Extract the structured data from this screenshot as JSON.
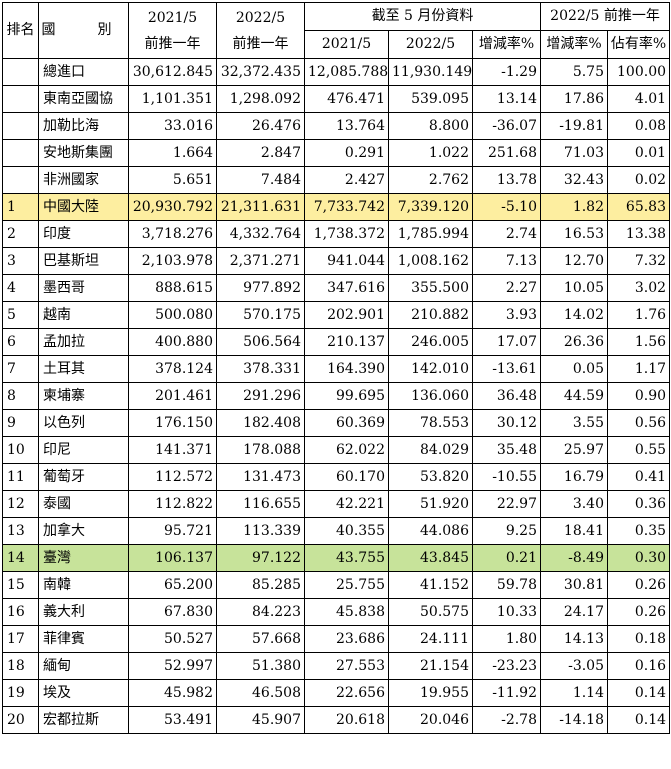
{
  "header": {
    "rank": "排名",
    "country": "國　別",
    "col1_line1": "2021/5",
    "col1_line2": "前推一年",
    "col2_line1": "2022/5",
    "col2_line2": "前推一年",
    "group_may": "截至 5 月份資料",
    "may_2021": "2021/5",
    "may_2022": "2022/5",
    "may_change": "增減率%",
    "group_trailing": "2022/5 前推一年",
    "trailing_change": "增減率%",
    "trailing_share": "佔有率%"
  },
  "highlight_colors": {
    "china": "#fdeea0",
    "taiwan": "#c7e39a"
  },
  "rows": [
    {
      "rank": "",
      "name": "總進口",
      "y2021": "30,612.845",
      "y2022": "32,372.435",
      "m2021": "12,085.788",
      "m2022": "11,930.149",
      "mchg": "-1.29",
      "ychg": "5.75",
      "share": "100.00"
    },
    {
      "rank": "",
      "name": "東南亞國協",
      "y2021": "1,101.351",
      "y2022": "1,298.092",
      "m2021": "476.471",
      "m2022": "539.095",
      "mchg": "13.14",
      "ychg": "17.86",
      "share": "4.01"
    },
    {
      "rank": "",
      "name": "加勒比海",
      "y2021": "33.016",
      "y2022": "26.476",
      "m2021": "13.764",
      "m2022": "8.800",
      "mchg": "-36.07",
      "ychg": "-19.81",
      "share": "0.08"
    },
    {
      "rank": "",
      "name": "安地斯集團",
      "y2021": "1.664",
      "y2022": "2.847",
      "m2021": "0.291",
      "m2022": "1.022",
      "mchg": "251.68",
      "ychg": "71.03",
      "share": "0.01"
    },
    {
      "rank": "",
      "name": "非洲國家",
      "y2021": "5.651",
      "y2022": "7.484",
      "m2021": "2.427",
      "m2022": "2.762",
      "mchg": "13.78",
      "ychg": "32.43",
      "share": "0.02"
    },
    {
      "rank": "1",
      "name": "中國大陸",
      "y2021": "20,930.792",
      "y2022": "21,311.631",
      "m2021": "7,733.742",
      "m2022": "7,339.120",
      "mchg": "-5.10",
      "ychg": "1.82",
      "share": "65.83"
    },
    {
      "rank": "2",
      "name": "印度",
      "y2021": "3,718.276",
      "y2022": "4,332.764",
      "m2021": "1,738.372",
      "m2022": "1,785.994",
      "mchg": "2.74",
      "ychg": "16.53",
      "share": "13.38"
    },
    {
      "rank": "3",
      "name": "巴基斯坦",
      "y2021": "2,103.978",
      "y2022": "2,371.271",
      "m2021": "941.044",
      "m2022": "1,008.162",
      "mchg": "7.13",
      "ychg": "12.70",
      "share": "7.32"
    },
    {
      "rank": "4",
      "name": "墨西哥",
      "y2021": "888.615",
      "y2022": "977.892",
      "m2021": "347.616",
      "m2022": "355.500",
      "mchg": "2.27",
      "ychg": "10.05",
      "share": "3.02"
    },
    {
      "rank": "5",
      "name": "越南",
      "y2021": "500.080",
      "y2022": "570.175",
      "m2021": "202.901",
      "m2022": "210.882",
      "mchg": "3.93",
      "ychg": "14.02",
      "share": "1.76"
    },
    {
      "rank": "6",
      "name": "孟加拉",
      "y2021": "400.880",
      "y2022": "506.564",
      "m2021": "210.137",
      "m2022": "246.005",
      "mchg": "17.07",
      "ychg": "26.36",
      "share": "1.56"
    },
    {
      "rank": "7",
      "name": "土耳其",
      "y2021": "378.124",
      "y2022": "378.331",
      "m2021": "164.390",
      "m2022": "142.010",
      "mchg": "-13.61",
      "ychg": "0.05",
      "share": "1.17"
    },
    {
      "rank": "8",
      "name": "柬埔寨",
      "y2021": "201.461",
      "y2022": "291.296",
      "m2021": "99.695",
      "m2022": "136.060",
      "mchg": "36.48",
      "ychg": "44.59",
      "share": "0.90"
    },
    {
      "rank": "9",
      "name": "以色列",
      "y2021": "176.150",
      "y2022": "182.408",
      "m2021": "60.369",
      "m2022": "78.553",
      "mchg": "30.12",
      "ychg": "3.55",
      "share": "0.56"
    },
    {
      "rank": "10",
      "name": "印尼",
      "y2021": "141.371",
      "y2022": "178.088",
      "m2021": "62.022",
      "m2022": "84.029",
      "mchg": "35.48",
      "ychg": "25.97",
      "share": "0.55"
    },
    {
      "rank": "11",
      "name": "葡萄牙",
      "y2021": "112.572",
      "y2022": "131.473",
      "m2021": "60.170",
      "m2022": "53.820",
      "mchg": "-10.55",
      "ychg": "16.79",
      "share": "0.41"
    },
    {
      "rank": "12",
      "name": "泰國",
      "y2021": "112.822",
      "y2022": "116.655",
      "m2021": "42.221",
      "m2022": "51.920",
      "mchg": "22.97",
      "ychg": "3.40",
      "share": "0.36"
    },
    {
      "rank": "13",
      "name": "加拿大",
      "y2021": "95.721",
      "y2022": "113.339",
      "m2021": "40.355",
      "m2022": "44.086",
      "mchg": "9.25",
      "ychg": "18.41",
      "share": "0.35"
    },
    {
      "rank": "14",
      "name": "臺灣",
      "y2021": "106.137",
      "y2022": "97.122",
      "m2021": "43.755",
      "m2022": "43.845",
      "mchg": "0.21",
      "ychg": "-8.49",
      "share": "0.30"
    },
    {
      "rank": "15",
      "name": "南韓",
      "y2021": "65.200",
      "y2022": "85.285",
      "m2021": "25.755",
      "m2022": "41.152",
      "mchg": "59.78",
      "ychg": "30.81",
      "share": "0.26"
    },
    {
      "rank": "16",
      "name": "義大利",
      "y2021": "67.830",
      "y2022": "84.223",
      "m2021": "45.838",
      "m2022": "50.575",
      "mchg": "10.33",
      "ychg": "24.17",
      "share": "0.26"
    },
    {
      "rank": "17",
      "name": "菲律賓",
      "y2021": "50.527",
      "y2022": "57.668",
      "m2021": "23.686",
      "m2022": "24.111",
      "mchg": "1.80",
      "ychg": "14.13",
      "share": "0.18"
    },
    {
      "rank": "18",
      "name": "緬甸",
      "y2021": "52.997",
      "y2022": "51.380",
      "m2021": "27.553",
      "m2022": "21.154",
      "mchg": "-23.23",
      "ychg": "-3.05",
      "share": "0.16"
    },
    {
      "rank": "19",
      "name": "埃及",
      "y2021": "45.982",
      "y2022": "46.508",
      "m2021": "22.656",
      "m2022": "19.955",
      "mchg": "-11.92",
      "ychg": "1.14",
      "share": "0.14"
    },
    {
      "rank": "20",
      "name": "宏都拉斯",
      "y2021": "53.491",
      "y2022": "45.907",
      "m2021": "20.618",
      "m2022": "20.046",
      "mchg": "-2.78",
      "ychg": "-14.18",
      "share": "0.14"
    }
  ]
}
